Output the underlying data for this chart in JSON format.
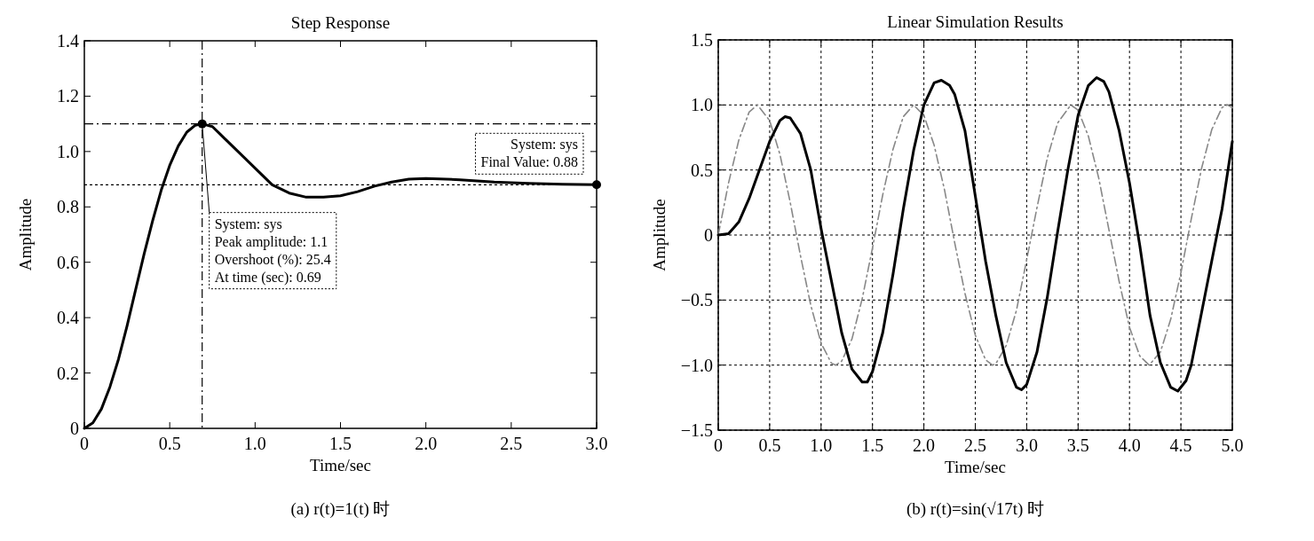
{
  "chart_data": [
    {
      "type": "line",
      "title": "Step Response",
      "xlabel": "Time/sec",
      "ylabel": "Amplitude",
      "xlim": [
        0,
        3
      ],
      "ylim": [
        0,
        1.4
      ],
      "xticks": [
        0,
        0.5,
        {
          "value": 1,
          "label": "1.0"
        },
        1.5,
        {
          "value": 2,
          "label": "2.0"
        },
        2.5,
        {
          "value": 3,
          "label": "3.0"
        }
      ],
      "yticks": [
        0,
        0.2,
        0.4,
        0.6,
        0.8,
        {
          "value": 1,
          "label": "1.0"
        },
        1.2,
        1.4
      ],
      "grid": false,
      "series": [
        {
          "color": "#000000",
          "line_style": "solid",
          "x": [
            0,
            0.05,
            0.1,
            0.15,
            0.2,
            0.25,
            0.3,
            0.35,
            0.4,
            0.45,
            0.5,
            0.55,
            0.6,
            0.65,
            0.69,
            0.75,
            0.8,
            0.9,
            1.0,
            1.1,
            1.2,
            1.3,
            1.4,
            1.5,
            1.6,
            1.7,
            1.8,
            1.9,
            2.0,
            2.2,
            2.4,
            2.6,
            2.8,
            3.0
          ],
          "values": [
            0,
            0.02,
            0.07,
            0.15,
            0.25,
            0.37,
            0.5,
            0.63,
            0.75,
            0.86,
            0.95,
            1.02,
            1.07,
            1.095,
            1.1,
            1.09,
            1.06,
            1.0,
            0.94,
            0.88,
            0.85,
            0.835,
            0.835,
            0.84,
            0.855,
            0.875,
            0.89,
            0.9,
            0.903,
            0.898,
            0.89,
            0.885,
            0.882,
            0.88
          ]
        }
      ],
      "ref_lines": [
        {
          "axis": "y",
          "value": 0.88,
          "line_style": "dotted",
          "color": "#000000"
        },
        {
          "axis": "x",
          "value": 0.69,
          "line_style": "dashed",
          "color": "#000000"
        },
        {
          "axis": "y",
          "value": 1.1,
          "line_style": "dashed",
          "color": "#000000"
        }
      ],
      "annotations": [
        {
          "text": "System: sys\nPeak amplitude: 1.1\nOvershoot (%): 25.4\nAt time (sec): 0.69",
          "x": 0.69,
          "y": 1.1
        },
        {
          "text": "System: sys\nFinal Value: 0.88",
          "x": 3.0,
          "y": 0.88
        },
        "(a) r(t)=1(t) 时"
      ]
    },
    {
      "type": "line",
      "title": "Linear Simulation Results",
      "xlabel": "Time/sec",
      "ylabel": "Amplitude",
      "xlim": [
        0,
        5
      ],
      "ylim": [
        -1.5,
        1.5
      ],
      "xticks": [
        0,
        0.5,
        {
          "value": 1,
          "label": "1.0"
        },
        1.5,
        {
          "value": 2,
          "label": "2.0"
        },
        2.5,
        {
          "value": 3,
          "label": "3.0"
        },
        3.5,
        {
          "value": 4,
          "label": "4.0"
        },
        4.5,
        {
          "value": 5,
          "label": "5.0"
        }
      ],
      "yticks": [
        {
          "value": -1.5,
          "label": "−1.5"
        },
        {
          "value": -1,
          "label": "−1.0"
        },
        {
          "value": -0.5,
          "label": "−0.5"
        },
        0,
        0.5,
        {
          "value": 1,
          "label": "1.0"
        },
        1.5
      ],
      "grid": true,
      "series": [
        {
          "color": "#888888",
          "line_style": "dashed",
          "x": [
            0,
            0.1,
            0.2,
            0.3,
            0.381,
            0.5,
            0.6,
            0.7,
            0.8,
            0.9,
            1.0,
            1.1,
            1.143,
            1.2,
            1.3,
            1.4,
            1.5,
            1.6,
            1.7,
            1.8,
            1.9,
            2.0,
            2.1,
            2.2,
            2.3,
            2.4,
            2.5,
            2.6,
            2.667,
            2.7,
            2.8,
            2.9,
            3.0,
            3.1,
            3.2,
            3.3,
            3.429,
            3.5,
            3.6,
            3.7,
            3.8,
            3.9,
            4.0,
            4.1,
            4.191,
            4.3,
            4.4,
            4.5,
            4.6,
            4.7,
            4.8,
            4.9,
            4.953,
            5.0
          ],
          "values": [
            0,
            0.4,
            0.73,
            0.945,
            1,
            0.88,
            0.62,
            0.25,
            -0.16,
            -0.54,
            -0.83,
            -0.985,
            -1,
            -0.97,
            -0.8,
            -0.49,
            -0.1,
            0.31,
            0.66,
            0.91,
            1,
            0.92,
            0.69,
            0.35,
            -0.06,
            -0.45,
            -0.77,
            -0.96,
            -1,
            -0.99,
            -0.85,
            -0.58,
            -0.19,
            0.21,
            0.59,
            0.86,
            1,
            0.96,
            0.76,
            0.44,
            0.04,
            -0.36,
            -0.71,
            -0.93,
            -1,
            -0.9,
            -0.65,
            -0.29,
            0.12,
            0.51,
            0.81,
            0.98,
            1,
            0.98
          ]
        },
        {
          "color": "#000000",
          "line_style": "solid",
          "x": [
            0,
            0.1,
            0.2,
            0.3,
            0.4,
            0.5,
            0.6,
            0.65,
            0.7,
            0.8,
            0.9,
            1.0,
            1.1,
            1.2,
            1.3,
            1.4,
            1.45,
            1.5,
            1.6,
            1.7,
            1.8,
            1.9,
            2.0,
            2.1,
            2.17,
            2.25,
            2.3,
            2.4,
            2.5,
            2.6,
            2.7,
            2.8,
            2.9,
            2.95,
            3.0,
            3.1,
            3.2,
            3.3,
            3.4,
            3.5,
            3.6,
            3.68,
            3.75,
            3.8,
            3.9,
            4.0,
            4.1,
            4.2,
            4.3,
            4.4,
            4.47,
            4.55,
            4.6,
            4.7,
            4.8,
            4.9,
            5.0
          ],
          "values": [
            0,
            0.01,
            0.1,
            0.28,
            0.5,
            0.72,
            0.88,
            0.91,
            0.9,
            0.78,
            0.5,
            0.05,
            -0.35,
            -0.75,
            -1.03,
            -1.13,
            -1.13,
            -1.05,
            -0.75,
            -0.3,
            0.2,
            0.65,
            1.0,
            1.17,
            1.19,
            1.15,
            1.08,
            0.8,
            0.3,
            -0.2,
            -0.62,
            -0.98,
            -1.17,
            -1.19,
            -1.15,
            -0.9,
            -0.48,
            0.02,
            0.5,
            0.92,
            1.15,
            1.21,
            1.18,
            1.1,
            0.8,
            0.4,
            -0.08,
            -0.62,
            -0.98,
            -1.17,
            -1.2,
            -1.12,
            -1.0,
            -0.6,
            -0.2,
            0.2,
            0.72
          ]
        }
      ],
      "annotations": [
        "(b) r(t)=sin(√17t) 时"
      ]
    }
  ]
}
